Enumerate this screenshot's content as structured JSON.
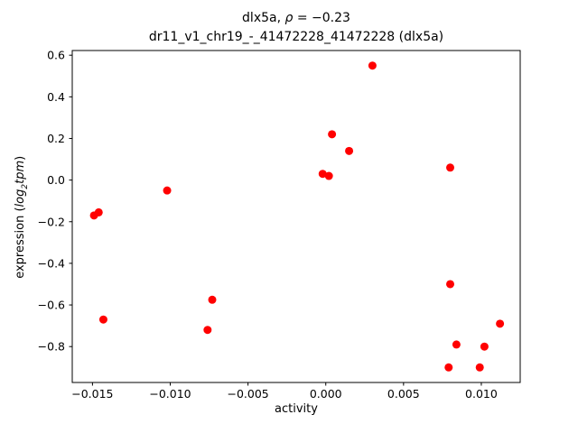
{
  "title": {
    "line1_pre": "dlx5a, ",
    "line1_rho": "ρ",
    "line1_rest": " = −0.23",
    "line2": "dr11_v1_chr19_-_41472228_41472228 (dlx5a)"
  },
  "axis_labels": {
    "xlabel": "activity",
    "ylabel_prefix": "expression (",
    "ylabel_math_main": "log",
    "ylabel_math_sub": "2",
    "ylabel_math_rest": "tpm",
    "ylabel_suffix": ")"
  },
  "chart_data": {
    "type": "scatter",
    "title": "dlx5a, ρ = −0.23",
    "subtitle": "dr11_v1_chr19_-_41472228_41472228 (dlx5a)",
    "xlabel": "activity",
    "ylabel": "expression (log2 tpm)",
    "grid": false,
    "legend": "none",
    "marker_color": "#ff0000",
    "axis_color": "#000000",
    "xlim": [
      -0.0163,
      0.0125
    ],
    "ylim": [
      -0.9725,
      0.6225
    ],
    "xticks": [
      -0.015,
      -0.01,
      -0.005,
      0.0,
      0.005,
      0.01
    ],
    "yticks": [
      -0.8,
      -0.6,
      -0.4,
      -0.2,
      0.0,
      0.2,
      0.4,
      0.6
    ],
    "points": [
      [
        -0.0149,
        -0.17
      ],
      [
        -0.0146,
        -0.155
      ],
      [
        -0.0143,
        -0.67
      ],
      [
        -0.0102,
        -0.05
      ],
      [
        -0.0076,
        -0.72
      ],
      [
        -0.0073,
        -0.575
      ],
      [
        -0.0002,
        0.03
      ],
      [
        0.0002,
        0.02
      ],
      [
        0.0004,
        0.22
      ],
      [
        0.0015,
        0.14
      ],
      [
        0.003,
        0.55
      ],
      [
        0.008,
        0.06
      ],
      [
        0.008,
        -0.5
      ],
      [
        0.0079,
        -0.9
      ],
      [
        0.0084,
        -0.79
      ],
      [
        0.0099,
        -0.9
      ],
      [
        0.0102,
        -0.8
      ],
      [
        0.0112,
        -0.69
      ]
    ]
  }
}
